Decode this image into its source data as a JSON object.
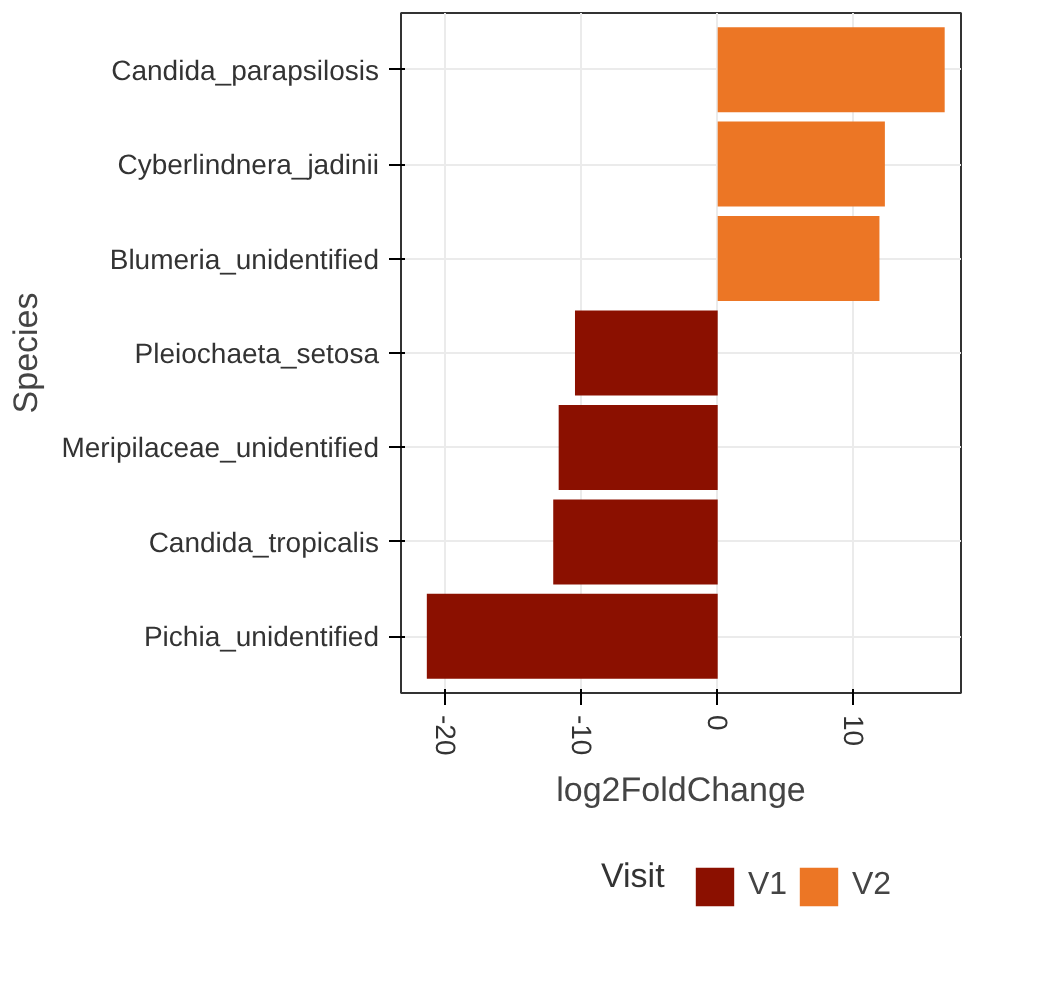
{
  "chart_data": {
    "type": "bar",
    "orientation": "horizontal",
    "xlabel": "log2FoldChange",
    "ylabel": "Species",
    "legend_title": "Visit",
    "categories": [
      "Candida_parapsilosis",
      "Cyberlindnera_jadinii",
      "Blumeria_unidentified",
      "Pleiochaeta_setosa",
      "Meripilaceae_unidentified",
      "Candida_tropicalis",
      "Pichia_unidentified"
    ],
    "series": [
      {
        "name": "V1",
        "color": "#8b1000",
        "values": [
          null,
          null,
          null,
          -10.5,
          -11.7,
          -12.1,
          -21.4
        ]
      },
      {
        "name": "V2",
        "color": "#ec7625",
        "values": [
          16.7,
          12.3,
          11.9,
          null,
          null,
          null,
          null
        ]
      }
    ],
    "xlim": [
      -23.3,
      17.9
    ],
    "xticks": [
      -20,
      -10,
      0,
      10
    ],
    "grid": true,
    "legend": "bottom"
  }
}
